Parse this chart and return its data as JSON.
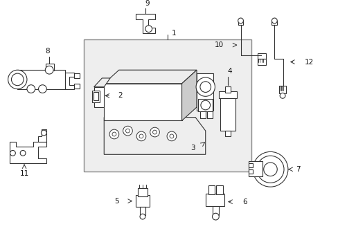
{
  "bg_color": "#ffffff",
  "box_bg": "#e8e8e8",
  "box_border": "#666666",
  "lc": "#333333",
  "lw": 0.8,
  "fig_w": 4.89,
  "fig_h": 3.6,
  "dpi": 100
}
